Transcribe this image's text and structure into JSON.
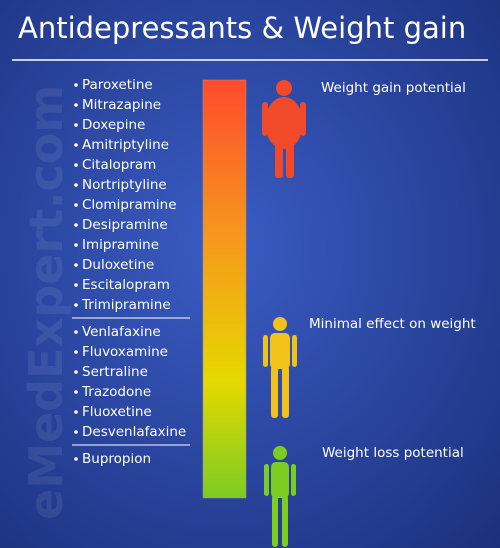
{
  "title": "Antidepressants & Weight gain",
  "watermark": "eMedExpert.com",
  "groups": [
    {
      "drugs": [
        "Paroxetine",
        "Mitrazapine",
        "Doxepine",
        "Amitriptyline",
        "Citalopram",
        "Nortriptyline",
        "Clomipramine",
        "Desipramine",
        "Imipramine",
        "Duloxetine",
        "Escitalopram",
        "Trimipramine"
      ]
    },
    {
      "drugs": [
        "Venlafaxine",
        "Fluvoxamine",
        "Sertraline",
        "Trazodone",
        "Fluoxetine",
        "Desvenlafaxine"
      ]
    },
    {
      "drugs": [
        "Bupropion"
      ]
    }
  ],
  "levels": [
    {
      "label": "Weight gain potential"
    },
    {
      "label": "Minimal effect on weight"
    },
    {
      "label": "Weight loss potential"
    }
  ]
}
